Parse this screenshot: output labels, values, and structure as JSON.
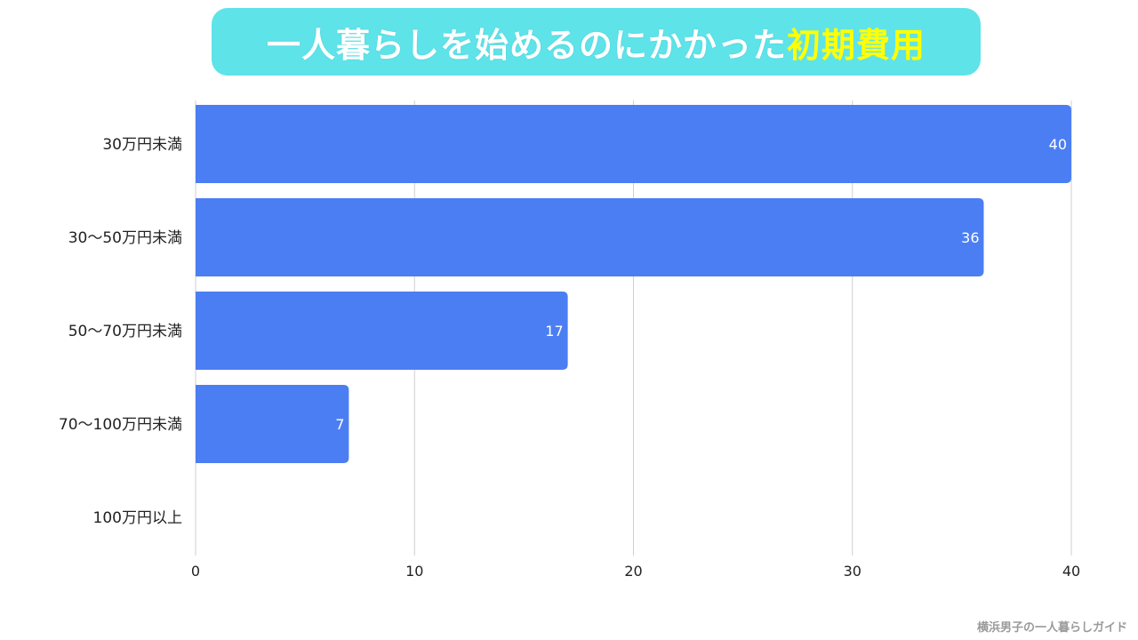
{
  "title": {
    "main": "一人暮らしを始めるのにかかった",
    "highlight": "初期費用"
  },
  "colors": {
    "banner": "#5ee3e9",
    "bar": "#4c7ef3",
    "highlight": "#ffff00"
  },
  "footer": "横浜男子の一人暮らしガイド",
  "chart_data": {
    "type": "bar",
    "orientation": "horizontal",
    "title": "一人暮らしを始めるのにかかった初期費用",
    "categories": [
      "30万円未満",
      "30〜50万円未満",
      "50〜70万円未満",
      "70〜100万円未満",
      "100万円以上"
    ],
    "values": [
      40,
      36,
      17,
      7,
      0
    ],
    "data_labels": [
      "40",
      "36",
      "17",
      "7",
      ""
    ],
    "xlim": [
      0,
      40
    ],
    "xticks": [
      0,
      10,
      20,
      30,
      40
    ],
    "xlabel": "",
    "ylabel": "",
    "grid": true,
    "legend": "none"
  }
}
